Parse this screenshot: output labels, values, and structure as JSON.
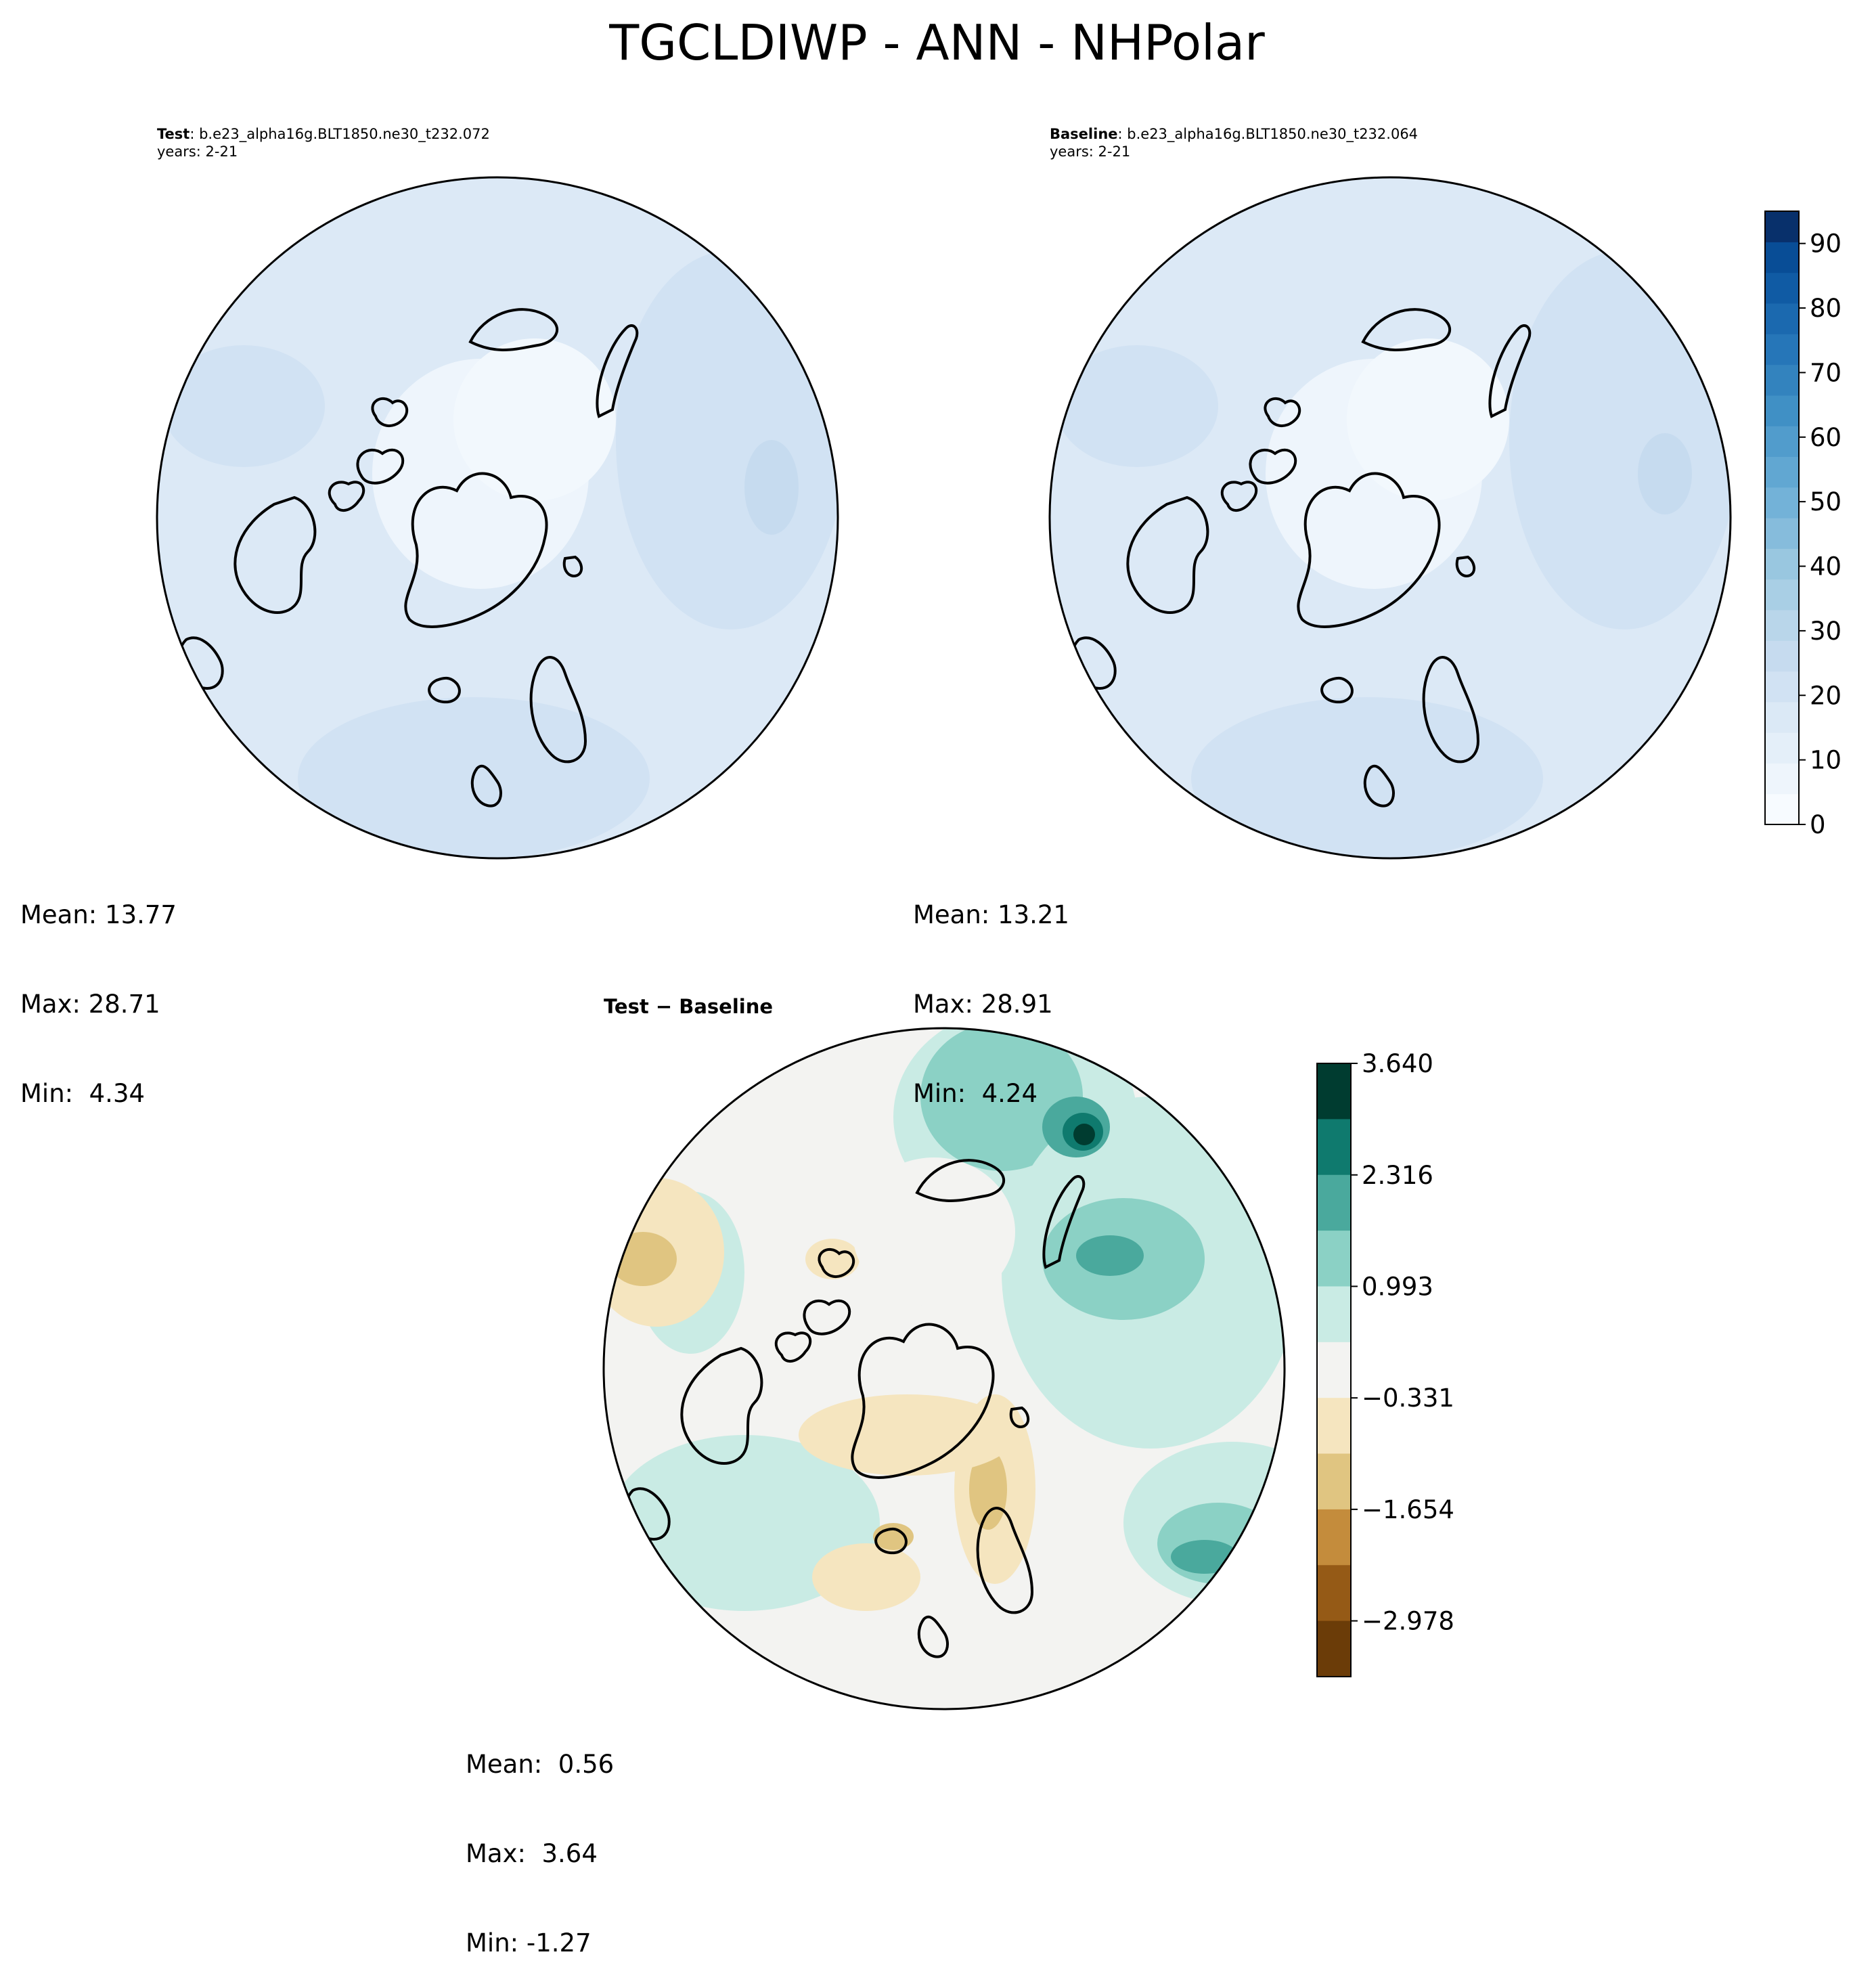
{
  "title": "TGCLDIWP - ANN - NHPolar",
  "panels": [
    {
      "id": "test",
      "label_bold": "Test",
      "case": ": b.e23_alpha16g.BLT1850.ne30_t232.072",
      "years": "years: 2-21",
      "mean": "Mean: 13.77",
      "max": "Max: 28.71",
      "min": "Min:  4.34",
      "fill": "#dce9f6"
    },
    {
      "id": "baseline",
      "label_bold": "Baseline",
      "case": ": b.e23_alpha16g.BLT1850.ne30_t232.064",
      "years": "years: 2-21",
      "mean": "Mean: 13.21",
      "max": "Max: 28.91",
      "min": "Min:  4.24",
      "fill": "#dce9f6"
    }
  ],
  "diff": {
    "title": "Test − Baseline",
    "mean": "Mean:  0.56",
    "max": "Max:  3.64",
    "min": "Min: -1.27"
  },
  "colorbar_main": {
    "ticks": [
      "0",
      "10",
      "20",
      "30",
      "40",
      "50",
      "60",
      "70",
      "80",
      "90"
    ],
    "tick_values": [
      0,
      10,
      20,
      30,
      40,
      50,
      60,
      70,
      80,
      90
    ],
    "range": [
      0,
      95
    ],
    "colors": [
      "#f7fbff",
      "#eef5fc",
      "#e4eff9",
      "#dbe9f6",
      "#d1e2f3",
      "#c6dbef",
      "#b9d6ea",
      "#a9cfe5",
      "#99c7e0",
      "#86bcdc",
      "#73b2d8",
      "#61a7d2",
      "#519ccc",
      "#4090c5",
      "#3383be",
      "#2676b8",
      "#1b69af",
      "#105ba4",
      "#084d96",
      "#08306b"
    ]
  },
  "colorbar_diff": {
    "ticks": [
      "3.640",
      "2.316",
      "0.993",
      "−0.331",
      "−1.654",
      "−2.978"
    ],
    "tick_values": [
      3.64,
      2.316,
      0.993,
      -0.331,
      -1.654,
      -2.978
    ],
    "range": [
      -3.64,
      3.64
    ],
    "colors": [
      "#003c30",
      "#0f7a6e",
      "#4aa99d",
      "#8bd1c5",
      "#c9ebe4",
      "#f3f3f1",
      "#f5e5bf",
      "#e0c581",
      "#c48c3c",
      "#955a16",
      "#6b3c08"
    ]
  },
  "map_colors": {
    "land": "#000000",
    "ocean_low": "#eef5fc",
    "pos_light": "#c9ebe4",
    "pos_mid": "#8bd1c5",
    "pos_strong": "#4aa99d",
    "pos_max": "#003c30",
    "neg_light": "#f5e5bf",
    "neg_mid": "#e0c581",
    "neutral": "#f3f3f1"
  }
}
